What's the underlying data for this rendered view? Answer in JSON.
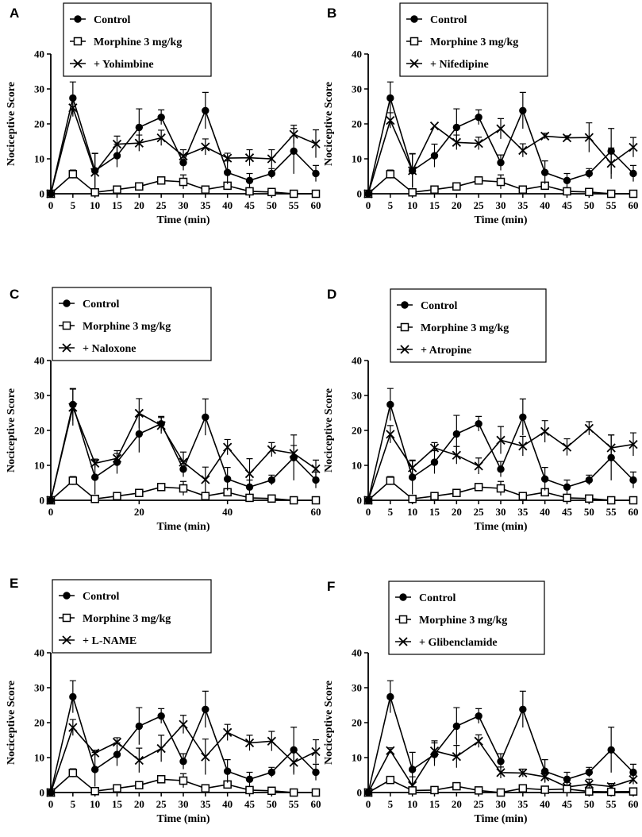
{
  "figure": {
    "colors": {
      "ink": "#000000",
      "background": "#ffffff",
      "hollow_marker_fill": "#ffffff"
    }
  },
  "chart_data": [
    {
      "panel": "A",
      "type": "line",
      "xlabel": "Time (min)",
      "ylabel": "Nociceptive Score",
      "xlim": [
        0,
        60
      ],
      "ylim": [
        0,
        40
      ],
      "xticks": [
        0,
        5,
        10,
        15,
        20,
        25,
        30,
        35,
        40,
        45,
        50,
        55,
        60
      ],
      "yticks": [
        0,
        10,
        20,
        30,
        40
      ],
      "x": [
        0,
        5,
        10,
        15,
        20,
        25,
        30,
        35,
        40,
        45,
        50,
        55,
        60
      ],
      "series": [
        {
          "name": "Control",
          "marker": "filled-circle",
          "values": [
            0,
            27.4,
            6.6,
            10.9,
            19.0,
            21.9,
            8.9,
            23.8,
            6.1,
            3.8,
            5.8,
            12.2,
            5.8
          ],
          "errors": [
            0,
            4.6,
            4.9,
            3.3,
            5.3,
            2.1,
            2.2,
            5.2,
            3.3,
            2.0,
            1.4,
            6.5,
            2.3
          ]
        },
        {
          "name": "Morphine 3 mg/kg",
          "marker": "open-square",
          "values": [
            0,
            5.6,
            0.4,
            1.2,
            2.1,
            3.8,
            3.4,
            1.2,
            2.3,
            0.7,
            0.5,
            0,
            0
          ],
          "errors": [
            0,
            1.2,
            0.5,
            0.4,
            0.7,
            0.5,
            2.0,
            0.4,
            0.8,
            0.5,
            0.4,
            0,
            0
          ]
        },
        {
          "name": "+ Yohimbine",
          "marker": "x",
          "values": [
            0,
            24.6,
            6.1,
            14.2,
            14.5,
            16.0,
            10.8,
            13.4,
            10.2,
            10.3,
            10.0,
            17.0,
            14.3
          ],
          "errors": [
            0,
            2.5,
            5.5,
            2.3,
            2.3,
            2.2,
            1.8,
            2.3,
            1.4,
            2.3,
            2.6,
            2.6,
            4.0
          ]
        }
      ]
    },
    {
      "panel": "B",
      "type": "line",
      "xlabel": "Time (min)",
      "ylabel": "Nociceptive Score",
      "xlim": [
        0,
        60
      ],
      "ylim": [
        0,
        40
      ],
      "xticks": [
        0,
        5,
        10,
        15,
        20,
        25,
        30,
        35,
        40,
        45,
        50,
        55,
        60
      ],
      "yticks": [
        0,
        10,
        20,
        30,
        40
      ],
      "x": [
        0,
        5,
        10,
        15,
        20,
        25,
        30,
        35,
        40,
        45,
        50,
        55,
        60
      ],
      "series": [
        {
          "name": "Control",
          "marker": "filled-circle",
          "values": [
            0,
            27.4,
            6.6,
            10.9,
            19.0,
            21.9,
            8.9,
            23.8,
            6.1,
            3.8,
            5.8,
            12.2,
            5.8
          ],
          "errors": [
            0,
            4.6,
            4.9,
            3.3,
            5.3,
            2.1,
            2.2,
            5.2,
            3.3,
            2.0,
            1.4,
            6.5,
            2.3
          ]
        },
        {
          "name": "Morphine 3 mg/kg",
          "marker": "open-square",
          "values": [
            0,
            5.6,
            0.4,
            1.2,
            2.1,
            3.8,
            3.4,
            1.2,
            2.3,
            0.7,
            0.5,
            0,
            0
          ],
          "errors": [
            0,
            1.2,
            0.5,
            0.4,
            0.7,
            0.5,
            2.0,
            0.4,
            0.8,
            0.5,
            0.4,
            0,
            0
          ]
        },
        {
          "name": "+ Nifedipine",
          "marker": "x",
          "values": [
            0,
            21.0,
            6.6,
            19.4,
            14.7,
            14.4,
            18.6,
            12.4,
            16.5,
            16.0,
            16.1,
            8.7,
            13.3
          ],
          "errors": [
            0,
            2.2,
            4.8,
            0,
            2.1,
            1.8,
            2.9,
            1.9,
            0.8,
            0.6,
            4.2,
            4.4,
            2.8
          ]
        }
      ]
    },
    {
      "panel": "C",
      "type": "line",
      "xlabel": "Time (min)",
      "ylabel": "Nociceptive Score",
      "xlim": [
        0,
        60
      ],
      "ylim": [
        0,
        40
      ],
      "xticks": [
        0,
        20,
        40,
        60
      ],
      "yticks": [
        0,
        10,
        20,
        30,
        40
      ],
      "x": [
        0,
        5,
        10,
        15,
        20,
        25,
        30,
        35,
        40,
        45,
        50,
        55,
        60
      ],
      "series": [
        {
          "name": "Control",
          "marker": "filled-circle",
          "values": [
            0,
            27.4,
            6.6,
            10.9,
            19.0,
            21.9,
            8.9,
            23.8,
            6.1,
            3.8,
            5.8,
            12.2,
            5.8
          ],
          "errors": [
            0,
            4.6,
            4.9,
            3.3,
            5.3,
            2.1,
            2.2,
            5.2,
            3.3,
            2.0,
            1.4,
            6.5,
            2.3
          ]
        },
        {
          "name": "Morphine 3 mg/kg",
          "marker": "open-square",
          "values": [
            0,
            5.6,
            0.4,
            1.2,
            2.1,
            3.8,
            3.4,
            1.2,
            2.3,
            0.7,
            0.5,
            0,
            0
          ],
          "errors": [
            0,
            1.2,
            0.5,
            0.4,
            0.7,
            0.5,
            2.0,
            0.4,
            0.8,
            0.5,
            0.4,
            0,
            0
          ]
        },
        {
          "name": "+ Naloxone",
          "marker": "x",
          "values": [
            0,
            26.6,
            10.6,
            12.0,
            24.9,
            21.4,
            10.9,
            5.9,
            15.2,
            7.6,
            14.5,
            13.4,
            9.0
          ],
          "errors": [
            0,
            5.2,
            1.2,
            1.4,
            4.2,
            2.3,
            2.9,
            3.6,
            2.2,
            4.3,
            2.0,
            2.3,
            2.5
          ]
        }
      ]
    },
    {
      "panel": "D",
      "type": "line",
      "xlabel": "Time (min)",
      "ylabel": "Nociceptive Score",
      "xlim": [
        0,
        60
      ],
      "ylim": [
        0,
        40
      ],
      "xticks": [
        0,
        5,
        10,
        15,
        20,
        25,
        30,
        35,
        40,
        45,
        50,
        55,
        60
      ],
      "yticks": [
        0,
        10,
        20,
        30,
        40
      ],
      "x": [
        0,
        5,
        10,
        15,
        20,
        25,
        30,
        35,
        40,
        45,
        50,
        55,
        60
      ],
      "series": [
        {
          "name": "Control",
          "marker": "filled-circle",
          "values": [
            0,
            27.4,
            6.6,
            10.9,
            19.0,
            21.9,
            8.9,
            23.8,
            6.1,
            3.8,
            5.8,
            12.2,
            5.8
          ],
          "errors": [
            0,
            4.6,
            4.9,
            3.3,
            5.3,
            2.1,
            2.2,
            5.2,
            3.3,
            2.0,
            1.4,
            6.5,
            2.3
          ]
        },
        {
          "name": "Morphine 3 mg/kg",
          "marker": "open-square",
          "values": [
            0,
            5.6,
            0.4,
            1.2,
            2.1,
            3.8,
            3.4,
            1.2,
            2.3,
            0.7,
            0.5,
            0,
            0
          ],
          "errors": [
            0,
            1.2,
            0.5,
            0.4,
            0.7,
            0.5,
            2.0,
            0.4,
            0.8,
            0.5,
            0.4,
            0,
            0
          ]
        },
        {
          "name": "+ Atropine",
          "marker": "x",
          "values": [
            0,
            18.9,
            9.3,
            15.0,
            12.9,
            9.8,
            17.2,
            15.5,
            19.7,
            15.2,
            20.6,
            15.0,
            16.0
          ],
          "errors": [
            0,
            2.5,
            2.0,
            1.5,
            2.5,
            2.3,
            3.9,
            2.8,
            3.1,
            2.4,
            1.9,
            3.7,
            3.3
          ]
        }
      ]
    },
    {
      "panel": "E",
      "type": "line",
      "xlabel": "Time (min)",
      "ylabel": "Nociceptive Score",
      "xlim": [
        0,
        60
      ],
      "ylim": [
        0,
        40
      ],
      "xticks": [
        0,
        5,
        10,
        15,
        20,
        25,
        30,
        35,
        40,
        45,
        50,
        55,
        60
      ],
      "yticks": [
        0,
        10,
        20,
        30,
        40
      ],
      "x": [
        0,
        5,
        10,
        15,
        20,
        25,
        30,
        35,
        40,
        45,
        50,
        55,
        60
      ],
      "series": [
        {
          "name": "Control",
          "marker": "filled-circle",
          "values": [
            0,
            27.4,
            6.6,
            10.9,
            19.0,
            21.9,
            8.9,
            23.8,
            6.1,
            3.8,
            5.8,
            12.2,
            5.8
          ],
          "errors": [
            0,
            4.6,
            4.9,
            3.3,
            5.3,
            2.1,
            2.2,
            5.2,
            3.3,
            2.0,
            1.4,
            6.5,
            2.3
          ]
        },
        {
          "name": "Morphine 3 mg/kg",
          "marker": "open-square",
          "values": [
            0,
            5.6,
            0.4,
            1.2,
            2.1,
            3.8,
            3.4,
            1.2,
            2.3,
            0.7,
            0.5,
            0,
            0
          ],
          "errors": [
            0,
            1.2,
            0.5,
            0.4,
            0.7,
            0.5,
            2.0,
            0.4,
            0.8,
            0.5,
            0.4,
            0,
            0
          ]
        },
        {
          "name": "+ L-NAME",
          "marker": "x",
          "values": [
            0,
            18.6,
            11.3,
            14.4,
            9.2,
            12.6,
            19.5,
            10.2,
            17.2,
            14.2,
            14.7,
            8.6,
            11.7
          ],
          "errors": [
            0,
            2.3,
            0.8,
            1.3,
            3.5,
            3.8,
            2.6,
            5.1,
            2.3,
            2.2,
            2.8,
            3.5,
            3.4
          ]
        }
      ]
    },
    {
      "panel": "F",
      "type": "line",
      "xlabel": "Time (min)",
      "ylabel": "Nociceptive Score",
      "xlim": [
        0,
        60
      ],
      "ylim": [
        0,
        40
      ],
      "xticks": [
        0,
        5,
        10,
        15,
        20,
        25,
        30,
        35,
        40,
        45,
        50,
        55,
        60
      ],
      "yticks": [
        0,
        10,
        20,
        30,
        40
      ],
      "x": [
        0,
        5,
        10,
        15,
        20,
        25,
        30,
        35,
        40,
        45,
        50,
        55,
        60
      ],
      "series": [
        {
          "name": "Control",
          "marker": "filled-circle",
          "values": [
            0,
            27.4,
            6.6,
            10.9,
            19.0,
            21.9,
            8.9,
            23.8,
            6.1,
            3.8,
            5.8,
            12.2,
            5.8
          ],
          "errors": [
            0,
            4.6,
            4.9,
            3.3,
            5.3,
            2.1,
            2.2,
            5.2,
            3.3,
            2.0,
            1.4,
            6.5,
            2.3
          ]
        },
        {
          "name": "Morphine 3 mg/kg",
          "marker": "open-square",
          "values": [
            0,
            3.6,
            0.6,
            0.7,
            1.8,
            0.6,
            0,
            1.2,
            0.8,
            1.0,
            0.3,
            0.2,
            0.3
          ],
          "errors": [
            0,
            1.0,
            0.5,
            0.4,
            0.9,
            0.4,
            0,
            0.5,
            0.6,
            0.5,
            0.3,
            0.2,
            0.3
          ]
        },
        {
          "name": "+ Glibenclamide",
          "marker": "x",
          "values": [
            0,
            12.0,
            2.0,
            11.9,
            10.3,
            14.7,
            5.7,
            5.6,
            4.5,
            1.6,
            2.4,
            1.7,
            3.7
          ],
          "errors": [
            0,
            0.8,
            2.5,
            2.9,
            3.2,
            1.8,
            1.6,
            1.1,
            1.5,
            1.3,
            1.4,
            0.9,
            1.3
          ]
        }
      ]
    }
  ]
}
